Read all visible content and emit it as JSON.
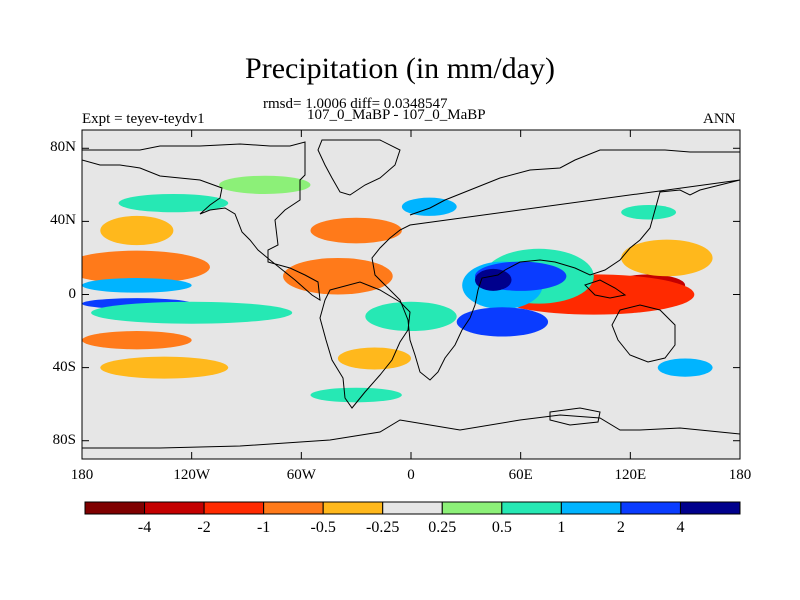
{
  "chart_data": {
    "type": "heatmap",
    "title": "Precipitation (in mm/day)",
    "stats_line": "rmsd= 1.0006 diff= 0.0348547",
    "comparison": "107_0_MaBP - 107_0_MaBP",
    "left_label": "Expt = teyev-teydv1",
    "right_label": "ANN",
    "x_ticks": [
      "180",
      "120W",
      "60W",
      "0",
      "60E",
      "120E",
      "180"
    ],
    "x_tick_lons": [
      -180,
      -120,
      -60,
      0,
      60,
      120,
      180
    ],
    "y_ticks": [
      "80N",
      "40N",
      "0",
      "40S",
      "80S"
    ],
    "y_tick_lats": [
      80,
      40,
      0,
      -40,
      -80
    ],
    "xlim": [
      -180,
      180
    ],
    "ylim": [
      -90,
      90
    ],
    "colorbar": {
      "colors": [
        "#7f0000",
        "#c40000",
        "#ff2a00",
        "#ff7a1a",
        "#ffb81c",
        "#e6e6e6",
        "#8cf078",
        "#26e8b4",
        "#00b4ff",
        "#0a3cff",
        "#00008c"
      ],
      "tick_labels": [
        "-4",
        "-2",
        "-1",
        "-0.5",
        "-0.25",
        "0.25",
        "0.5",
        "1",
        "2",
        "4"
      ]
    },
    "anomaly_regions": [
      {
        "lon": 100,
        "lat": -2,
        "rlon": 35,
        "rlat": 7,
        "level": "-4"
      },
      {
        "lon": 130,
        "lat": 5,
        "rlon": 20,
        "rlat": 6,
        "level": "-2"
      },
      {
        "lon": 100,
        "lat": 0,
        "rlon": 55,
        "rlat": 11,
        "level": "-1"
      },
      {
        "lon": -165,
        "lat": 17,
        "rlon": 20,
        "rlat": 5,
        "level": "-1"
      },
      {
        "lon": -150,
        "lat": 15,
        "rlon": 40,
        "rlat": 9,
        "level": "-0.5"
      },
      {
        "lon": -150,
        "lat": -25,
        "rlon": 30,
        "rlat": 5,
        "level": "-0.5"
      },
      {
        "lon": -40,
        "lat": 10,
        "rlon": 30,
        "rlat": 10,
        "level": "-0.5"
      },
      {
        "lon": -30,
        "lat": 35,
        "rlon": 25,
        "rlat": 7,
        "level": "-0.5"
      },
      {
        "lon": -20,
        "lat": -35,
        "rlon": 20,
        "rlat": 6,
        "level": "-0.25"
      },
      {
        "lon": 140,
        "lat": 20,
        "rlon": 25,
        "rlat": 10,
        "level": "-0.25"
      },
      {
        "lon": -135,
        "lat": -40,
        "rlon": 35,
        "rlat": 6,
        "level": "-0.25"
      },
      {
        "lon": -150,
        "lat": 35,
        "rlon": 20,
        "rlat": 8,
        "level": "-0.25"
      },
      {
        "lon": 70,
        "lat": 10,
        "rlon": 30,
        "rlat": 15,
        "level": "0.5"
      },
      {
        "lon": 50,
        "lat": 5,
        "rlon": 22,
        "rlat": 13,
        "level": "1"
      },
      {
        "lon": 50,
        "lat": -15,
        "rlon": 25,
        "rlat": 8,
        "level": "2"
      },
      {
        "lon": 60,
        "lat": 10,
        "rlon": 25,
        "rlat": 8,
        "level": "2"
      },
      {
        "lon": 45,
        "lat": 8,
        "rlon": 10,
        "rlat": 6,
        "level": "4"
      },
      {
        "lon": -150,
        "lat": 5,
        "rlon": 30,
        "rlat": 4,
        "level": "1"
      },
      {
        "lon": -150,
        "lat": -5,
        "rlon": 30,
        "rlat": 3,
        "level": "2"
      },
      {
        "lon": -120,
        "lat": -10,
        "rlon": 55,
        "rlat": 6,
        "level": "0.5"
      },
      {
        "lon": 0,
        "lat": -12,
        "rlon": 25,
        "rlat": 8,
        "level": "0.5"
      },
      {
        "lon": -130,
        "lat": 50,
        "rlon": 30,
        "rlat": 5,
        "level": "0.5"
      },
      {
        "lon": -80,
        "lat": 60,
        "rlon": 25,
        "rlat": 5,
        "level": "0.25"
      },
      {
        "lon": -30,
        "lat": -55,
        "rlon": 25,
        "rlat": 4,
        "level": "0.5"
      },
      {
        "lon": 150,
        "lat": -40,
        "rlon": 15,
        "rlat": 5,
        "level": "1"
      },
      {
        "lon": 130,
        "lat": 45,
        "rlon": 15,
        "rlat": 4,
        "level": "0.5"
      },
      {
        "lon": 10,
        "lat": 48,
        "rlon": 15,
        "rlat": 5,
        "level": "1"
      }
    ]
  }
}
